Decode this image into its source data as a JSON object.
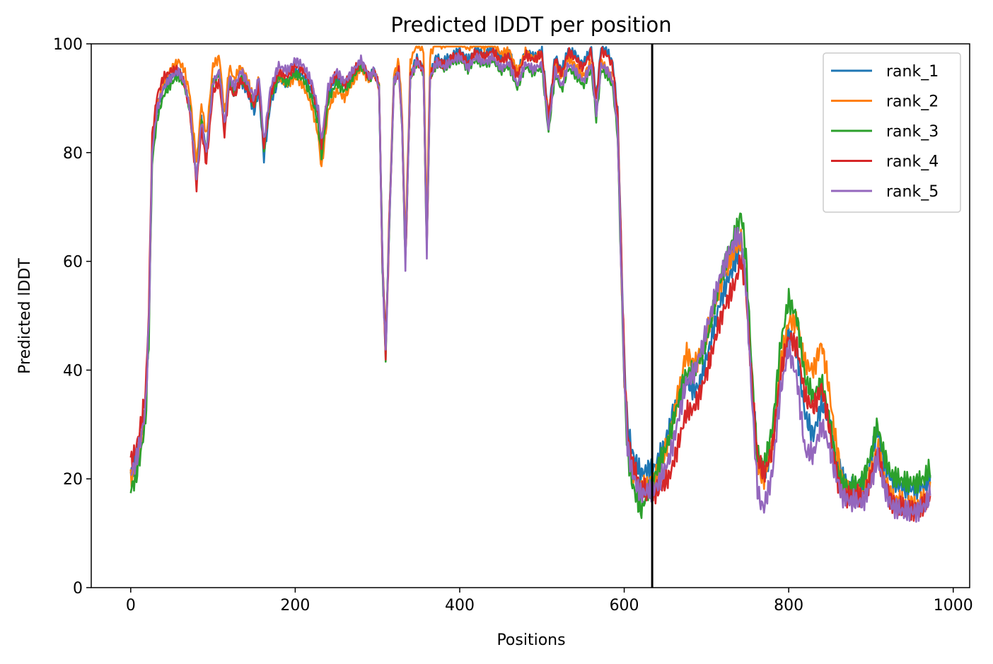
{
  "chart_data": {
    "type": "line",
    "title": "Predicted lDDT per position",
    "xlabel": "Positions",
    "ylabel": "Predicted lDDT",
    "xlim": [
      -48,
      1020
    ],
    "ylim": [
      0,
      100
    ],
    "xticks": [
      0,
      200,
      400,
      600,
      800,
      1000
    ],
    "yticks": [
      0,
      20,
      40,
      60,
      80,
      100
    ],
    "legend": "top-right",
    "grid": false,
    "vline": {
      "x": 634,
      "color": "#000000"
    },
    "series": [
      {
        "name": "rank_1",
        "color": "#1f77b4",
        "offset": [
          [
            0,
            0
          ],
          [
            100,
            0
          ],
          [
            160,
            -3
          ],
          [
            300,
            0
          ],
          [
            640,
            3
          ],
          [
            660,
            6
          ],
          [
            690,
            -2
          ],
          [
            720,
            0
          ],
          [
            760,
            2
          ],
          [
            800,
            2
          ],
          [
            830,
            -3
          ],
          [
            860,
            3
          ],
          [
            880,
            2
          ],
          [
            905,
            4
          ],
          [
            960,
            3
          ],
          [
            972,
            2
          ]
        ]
      },
      {
        "name": "rank_2",
        "color": "#ff7f0e",
        "offset": [
          [
            0,
            -1
          ],
          [
            80,
            3
          ],
          [
            100,
            3
          ],
          [
            230,
            -5
          ],
          [
            300,
            0
          ],
          [
            360,
            4
          ],
          [
            600,
            -1
          ],
          [
            640,
            1
          ],
          [
            675,
            7
          ],
          [
            690,
            3
          ],
          [
            735,
            3
          ],
          [
            760,
            0
          ],
          [
            800,
            4
          ],
          [
            820,
            8
          ],
          [
            840,
            10
          ],
          [
            870,
            1
          ],
          [
            905,
            1
          ],
          [
            972,
            0
          ]
        ]
      },
      {
        "name": "rank_3",
        "color": "#2ca02c",
        "offset": [
          [
            0,
            -3
          ],
          [
            80,
            0
          ],
          [
            230,
            -3
          ],
          [
            300,
            0
          ],
          [
            600,
            -2
          ],
          [
            620,
            -4
          ],
          [
            640,
            2
          ],
          [
            660,
            4
          ],
          [
            700,
            2
          ],
          [
            745,
            7
          ],
          [
            760,
            2
          ],
          [
            800,
            8
          ],
          [
            830,
            4
          ],
          [
            860,
            1
          ],
          [
            905,
            5
          ],
          [
            972,
            4
          ]
        ]
      },
      {
        "name": "rank_4",
        "color": "#d62728",
        "offset": [
          [
            0,
            2
          ],
          [
            25,
            3
          ],
          [
            90,
            -2
          ],
          [
            300,
            0
          ],
          [
            360,
            0
          ],
          [
            600,
            2
          ],
          [
            640,
            -2
          ],
          [
            660,
            -4
          ],
          [
            700,
            -4
          ],
          [
            735,
            -3
          ],
          [
            760,
            2
          ],
          [
            800,
            1
          ],
          [
            820,
            2
          ],
          [
            840,
            2
          ],
          [
            860,
            -1
          ],
          [
            880,
            1
          ],
          [
            905,
            0
          ],
          [
            972,
            -1
          ]
        ]
      },
      {
        "name": "rank_5",
        "color": "#9467bd",
        "offset": [
          [
            0,
            0
          ],
          [
            300,
            0
          ],
          [
            600,
            -1
          ],
          [
            640,
            -1
          ],
          [
            660,
            0
          ],
          [
            700,
            4
          ],
          [
            735,
            5
          ],
          [
            765,
            -5
          ],
          [
            780,
            -3
          ],
          [
            800,
            -1
          ],
          [
            820,
            -8
          ],
          [
            840,
            -5
          ],
          [
            860,
            -1
          ],
          [
            880,
            0
          ],
          [
            905,
            -1
          ],
          [
            972,
            -1
          ]
        ]
      }
    ],
    "base_profile": [
      [
        0,
        21
      ],
      [
        6,
        23
      ],
      [
        12,
        27
      ],
      [
        18,
        33
      ],
      [
        22,
        48
      ],
      [
        26,
        80
      ],
      [
        32,
        88
      ],
      [
        40,
        92
      ],
      [
        50,
        94
      ],
      [
        58,
        95
      ],
      [
        65,
        93
      ],
      [
        72,
        88
      ],
      [
        80,
        75
      ],
      [
        86,
        86
      ],
      [
        92,
        80
      ],
      [
        100,
        93
      ],
      [
        108,
        95
      ],
      [
        114,
        85
      ],
      [
        120,
        94
      ],
      [
        126,
        92
      ],
      [
        134,
        95
      ],
      [
        142,
        93
      ],
      [
        150,
        90
      ],
      [
        156,
        94
      ],
      [
        162,
        82
      ],
      [
        170,
        92
      ],
      [
        180,
        96
      ],
      [
        190,
        95
      ],
      [
        200,
        97
      ],
      [
        210,
        96
      ],
      [
        220,
        93
      ],
      [
        228,
        88
      ],
      [
        232,
        82
      ],
      [
        240,
        92
      ],
      [
        250,
        95
      ],
      [
        260,
        93
      ],
      [
        270,
        95
      ],
      [
        280,
        97
      ],
      [
        290,
        94
      ],
      [
        296,
        95
      ],
      [
        302,
        92
      ],
      [
        306,
        60
      ],
      [
        310,
        43
      ],
      [
        314,
        65
      ],
      [
        320,
        93
      ],
      [
        326,
        95
      ],
      [
        330,
        85
      ],
      [
        334,
        60
      ],
      [
        340,
        94
      ],
      [
        348,
        97
      ],
      [
        356,
        95
      ],
      [
        360,
        62
      ],
      [
        364,
        94
      ],
      [
        372,
        97
      ],
      [
        380,
        96
      ],
      [
        390,
        97
      ],
      [
        400,
        98
      ],
      [
        410,
        96
      ],
      [
        420,
        98
      ],
      [
        430,
        97
      ],
      [
        440,
        98
      ],
      [
        450,
        96
      ],
      [
        460,
        97
      ],
      [
        470,
        93
      ],
      [
        480,
        97
      ],
      [
        490,
        96
      ],
      [
        500,
        97
      ],
      [
        508,
        85
      ],
      [
        516,
        96
      ],
      [
        524,
        93
      ],
      [
        532,
        97
      ],
      [
        540,
        96
      ],
      [
        550,
        94
      ],
      [
        560,
        97
      ],
      [
        566,
        88
      ],
      [
        572,
        97
      ],
      [
        580,
        96
      ],
      [
        586,
        94
      ],
      [
        592,
        85
      ],
      [
        596,
        62
      ],
      [
        600,
        40
      ],
      [
        604,
        27
      ],
      [
        610,
        22
      ],
      [
        620,
        18
      ],
      [
        630,
        19
      ],
      [
        636,
        19
      ],
      [
        645,
        21
      ],
      [
        655,
        24
      ],
      [
        665,
        30
      ],
      [
        675,
        36
      ],
      [
        685,
        37
      ],
      [
        695,
        41
      ],
      [
        705,
        46
      ],
      [
        715,
        52
      ],
      [
        725,
        56
      ],
      [
        735,
        59
      ],
      [
        742,
        62
      ],
      [
        748,
        55
      ],
      [
        755,
        37
      ],
      [
        762,
        22
      ],
      [
        770,
        19
      ],
      [
        780,
        24
      ],
      [
        790,
        38
      ],
      [
        800,
        45
      ],
      [
        810,
        43
      ],
      [
        820,
        33
      ],
      [
        830,
        31
      ],
      [
        840,
        35
      ],
      [
        848,
        30
      ],
      [
        856,
        23
      ],
      [
        864,
        18
      ],
      [
        875,
        16
      ],
      [
        890,
        16
      ],
      [
        900,
        20
      ],
      [
        908,
        25
      ],
      [
        915,
        20
      ],
      [
        925,
        16
      ],
      [
        940,
        15
      ],
      [
        955,
        15
      ],
      [
        965,
        16
      ],
      [
        972,
        18
      ]
    ]
  }
}
